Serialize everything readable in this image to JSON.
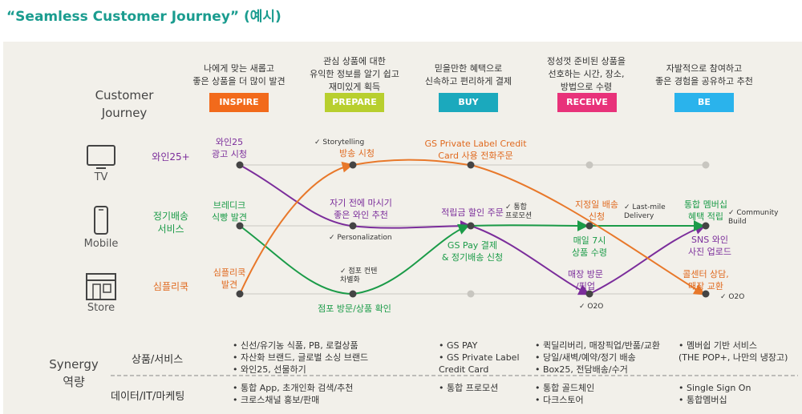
{
  "title": "“Seamless Customer Journey” (예시)",
  "sections": {
    "journey": "Customer\nJourney",
    "synergy": "Synergy\n역량"
  },
  "stages": [
    {
      "name": "INSPIRE",
      "desc": "나에게 맞는 새롭고\n좋은 상품을 더 많이 발견",
      "color": "#f26a1b"
    },
    {
      "name": "PREPARE",
      "desc": "관심 상품에 대한\n유익한 정보를 알기 쉽고\n재미있게 획득",
      "color": "#b8cf2e"
    },
    {
      "name": "BUY",
      "desc": "믿을만한 혜택으로\n신속하고 편리하게 결제",
      "color": "#1ba9bd"
    },
    {
      "name": "RECEIVE",
      "desc": "정성껏 준비된 상품을\n선호하는 시간, 장소,\n방법으로 수령",
      "color": "#e8327a"
    },
    {
      "name": "BE",
      "desc": "자발적으로 참여하고\n좋은 경험을 공유하고 추천",
      "color": "#2ab3ec"
    }
  ],
  "channels": {
    "tv": "TV",
    "mobile": "Mobile",
    "store": "Store"
  },
  "rows": [
    {
      "label": "와인25+",
      "color": "#7b2d9b"
    },
    {
      "label": "정기배송\n서비스",
      "color": "#1b9b48"
    },
    {
      "label": "심플리쿡",
      "color": "#e06a20"
    }
  ],
  "labels": {
    "wine_ad": "와인25\n광고 시청",
    "broadcast": "방송 시청",
    "gs_card": "GS Private Label Credit\nCard 사용 전화주문",
    "bread": "브레디크\n식빵 발견",
    "wine_rec": "자기 전에 마시기\n좋은 와인 추천",
    "points": "적립금 할인 주문",
    "gspay": "GS Pay 결제\n& 정기배송 신청",
    "fixed_delivery": "지정일 배송\n신청",
    "daily7": "매일 7시\n상품 수령",
    "membership": "통합 멤버십\n혜택 적립",
    "sns": "SNS 와인\n사진 업로드",
    "simply": "심플리쿡\n발견",
    "store_visit": "점포 방문/상품 확인",
    "store_pickup": "매장 방문\n/픽업",
    "callcenter": "콜센터 상담,\n매장 교환"
  },
  "checks": {
    "storytelling": "✓ Storytelling",
    "personalization": "✓ Personalization",
    "store_content": "✓ 점포 컨텐\n  차별화",
    "integrated_promo": "✓ 통합\n  프로모션",
    "last_mile": "✓ Last-mile\n  Delivery",
    "community": "✓ Community\n  Build",
    "o2o_1": "✓ O2O",
    "o2o_2": "✓ O2O"
  },
  "synergy": {
    "products_label": "상품/서비스",
    "data_label": "데이터/IT/마케팅",
    "products": [
      [
        "• 신선/유기농 식품, PB, 로컬상품",
        "• 자산화 브랜드, 글로벌 소싱 브랜드",
        "• 와인25, 선물하기"
      ],
      [
        "• GS PAY",
        "• GS Private Label",
        "  Credit Card"
      ],
      [
        "• 퀵딜리버리, 매장픽업/반품/교환",
        "• 당일/새벽/예약/정기 배송",
        "• Box25, 전담배송/수거"
      ],
      [
        "• 멤버쉽 기반 서비스",
        "  (THE POP+, 나만의 냉장고)"
      ]
    ],
    "data": [
      [
        "• 통합 App, 초개인화 검색/추천",
        "• 크로스채널 홍보/판매"
      ],
      [
        "• 통합 프로모션"
      ],
      [
        "• 통합 골드체인",
        "• 다크스토어"
      ],
      [
        "• Single Sign On",
        "• 통합멤버십"
      ]
    ]
  }
}
